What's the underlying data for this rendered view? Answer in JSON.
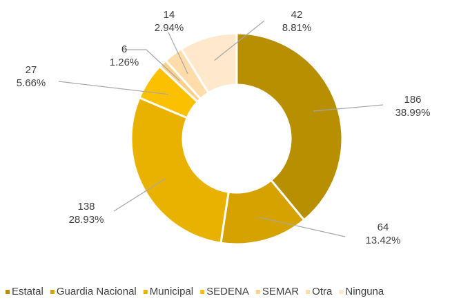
{
  "chart_data": {
    "type": "donut",
    "categories": [
      "Estatal",
      "Guardia Nacional",
      "Municipal",
      "SEDENA",
      "SEMAR",
      "Otra",
      "Ninguna"
    ],
    "values": [
      186,
      64,
      138,
      27,
      6,
      14,
      42
    ],
    "percent_labels": [
      "38.99%",
      "13.42%",
      "28.93%",
      "5.66%",
      "1.26%",
      "2.94%",
      "8.81%"
    ],
    "colors": [
      "#b88f00",
      "#d6a200",
      "#eab200",
      "#fbc100",
      "#ffd08a",
      "#ffdcaa",
      "#ffe8cc"
    ],
    "legend": "bottom"
  }
}
